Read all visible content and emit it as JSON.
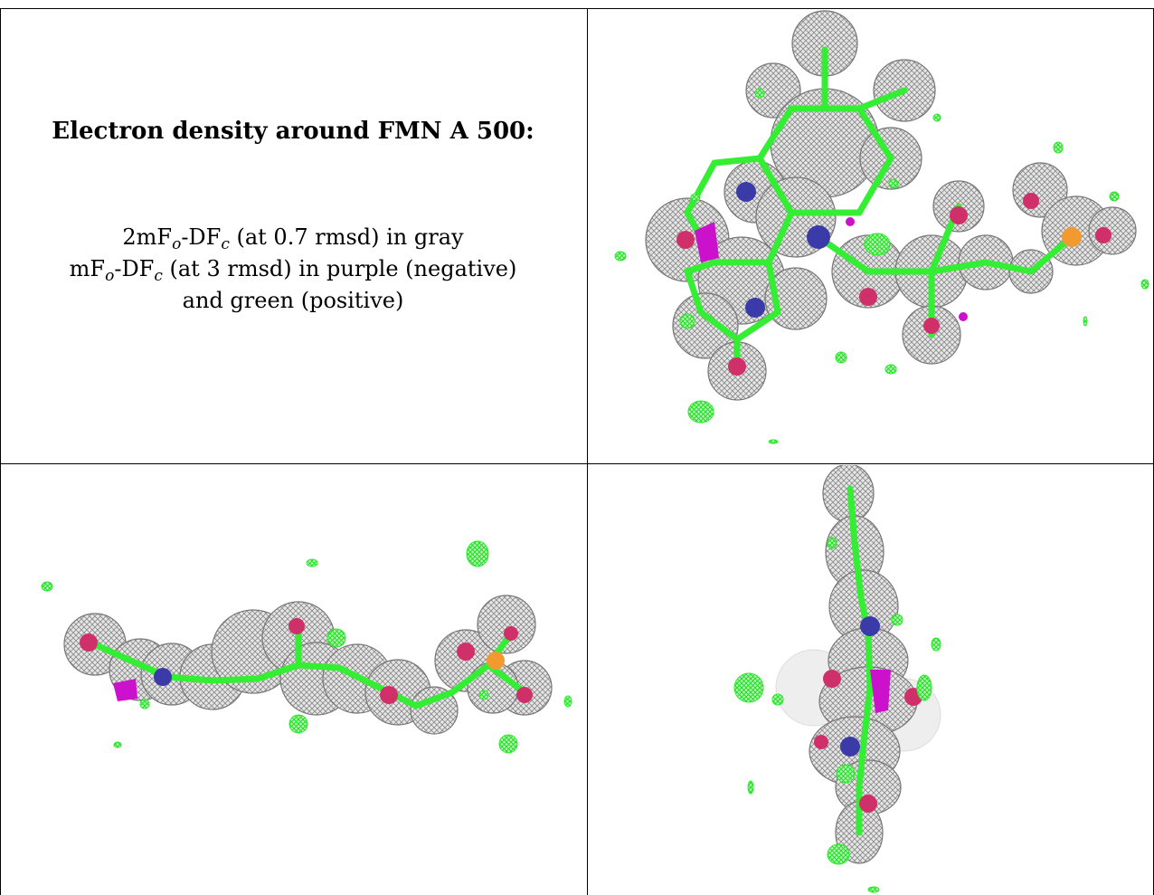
{
  "caption": {
    "title": "Electron density around FMN A 500:",
    "line1": {
      "prefix": "2mF",
      "sub1": "o",
      "mid": "-DF",
      "sub2": "c",
      "suffix": " (at 0.7 rmsd) in gray"
    },
    "line2": {
      "prefix": "mF",
      "sub1": "o",
      "mid": "-DF",
      "sub2": "c",
      "suffix": " (at 3 rmsd) in purple (negative)"
    },
    "line3": "and green (positive)"
  },
  "colors": {
    "mesh_gray": "#8a8a8a",
    "mesh_fill": "#d4d4d4",
    "carbon_green": "#33ee33",
    "nitrogen_blue": "#3a3aa8",
    "oxygen_red": "#d0306a",
    "phosphorus_orange": "#f09a30",
    "negative_purple": "#cc11cc",
    "positive_green": "#22ee22"
  },
  "panels": [
    {
      "name": "density-view-top",
      "icon": "flavin-mononucleotide-density-mesh"
    },
    {
      "name": "density-view-side",
      "icon": "flavin-mononucleotide-density-mesh"
    },
    {
      "name": "density-view-end",
      "icon": "flavin-mononucleotide-density-mesh"
    }
  ]
}
